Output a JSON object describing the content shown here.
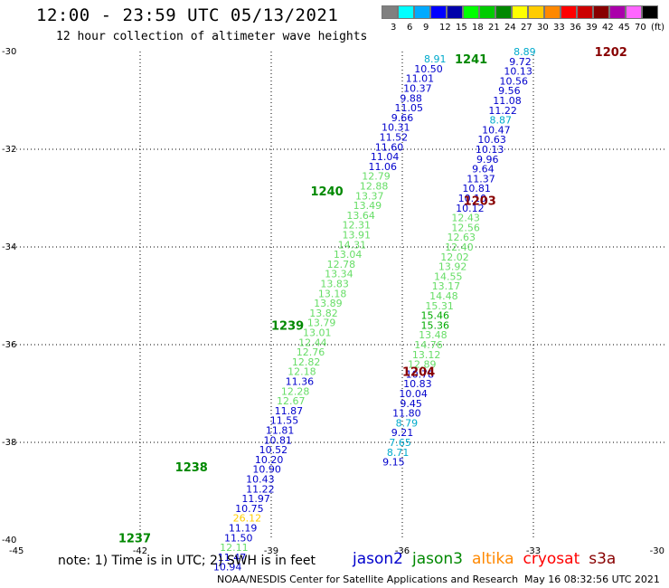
{
  "title": "12:00 - 23:59 UTC 05/13/2021",
  "subtitle": "12 hour collection of altimeter wave heights",
  "colorbar": {
    "labels": [
      "3",
      "6",
      "9",
      "12",
      "15",
      "18",
      "21",
      "24",
      "27",
      "30",
      "33",
      "36",
      "39",
      "42",
      "45",
      "70",
      "(ft)"
    ],
    "colors": [
      "#808080",
      "#00ffff",
      "#00aaff",
      "#0000ff",
      "#0000aa",
      "#00ff00",
      "#00cc00",
      "#008800",
      "#ffff00",
      "#ffcc00",
      "#ff8800",
      "#ff0000",
      "#cc0000",
      "#880000",
      "#aa00aa",
      "#ff66ff",
      "#000000"
    ]
  },
  "note": "note: 1) Time is in UTC; 2) SWH is in feet",
  "legend": [
    {
      "name": "jason2",
      "color": "#0000cc"
    },
    {
      "name": "jason3",
      "color": "#008800"
    },
    {
      "name": "altika",
      "color": "#ff8800"
    },
    {
      "name": "cryosat",
      "color": "#ff0000"
    },
    {
      "name": "s3a",
      "color": "#880000"
    }
  ],
  "credit": "NOAA/NESDIS Center for Satellite Applications and Research",
  "timestamp": "May 16 08:32:56 UTC 2021",
  "chart_data": {
    "type": "scatter",
    "xlim": [
      -45,
      -30
    ],
    "ylim": [
      -40,
      -30
    ],
    "x_ticks": [
      -45,
      -42,
      -39,
      -36,
      -33,
      -30
    ],
    "y_ticks": [
      -30,
      -32,
      -34,
      -36,
      -38,
      -40
    ],
    "x_tick_labels": [
      "-45",
      "-42",
      "-39",
      "-36",
      "-33",
      "-30"
    ],
    "y_tick_labels": [
      "-30",
      "-32",
      "-34",
      "-36",
      "-38",
      "-40"
    ],
    "grid": true,
    "pass_labels": [
      {
        "text": "1202",
        "x": -31.6,
        "y": -30.0,
        "color": "#880000"
      },
      {
        "text": "1241",
        "x": -34.8,
        "y": -30.15,
        "color": "#008800"
      },
      {
        "text": "1240",
        "x": -38.1,
        "y": -32.85,
        "color": "#008800"
      },
      {
        "text": "1203",
        "x": -34.6,
        "y": -33.05,
        "color": "#880000"
      },
      {
        "text": "1239",
        "x": -39.0,
        "y": -35.6,
        "color": "#008800"
      },
      {
        "text": "1204",
        "x": -36.0,
        "y": -36.55,
        "color": "#880000"
      },
      {
        "text": "1238",
        "x": -41.2,
        "y": -38.5,
        "color": "#008800"
      },
      {
        "text": "1237",
        "x": -42.5,
        "y": -39.95,
        "color": "#008800"
      }
    ],
    "tracks": [
      {
        "label": "jason3 west track",
        "points": [
          {
            "x": -35.25,
            "y": -30.15,
            "v": "8.91",
            "c": "#00aacc"
          },
          {
            "x": -35.4,
            "y": -30.35,
            "v": "10.50",
            "c": "#0000cc"
          },
          {
            "x": -35.6,
            "y": -30.55,
            "v": "11.01",
            "c": "#0000cc"
          },
          {
            "x": -35.65,
            "y": -30.75,
            "v": "10.37",
            "c": "#0000cc"
          },
          {
            "x": -35.8,
            "y": -30.95,
            "v": "9.88",
            "c": "#0000cc"
          },
          {
            "x": -35.85,
            "y": -31.15,
            "v": "11.05",
            "c": "#0000cc"
          },
          {
            "x": -36.0,
            "y": -31.35,
            "v": "9.66",
            "c": "#0000cc"
          },
          {
            "x": -36.15,
            "y": -31.55,
            "v": "10.31",
            "c": "#0000cc"
          },
          {
            "x": -36.2,
            "y": -31.75,
            "v": "11.52",
            "c": "#0000cc"
          },
          {
            "x": -36.3,
            "y": -31.95,
            "v": "11.60",
            "c": "#0000cc"
          },
          {
            "x": -36.4,
            "y": -32.15,
            "v": "11.04",
            "c": "#0000cc"
          },
          {
            "x": -36.45,
            "y": -32.35,
            "v": "11.06",
            "c": "#0000cc"
          },
          {
            "x": -36.6,
            "y": -32.55,
            "v": "12.79",
            "c": "#66dd66"
          },
          {
            "x": -36.65,
            "y": -32.75,
            "v": "12.88",
            "c": "#66dd66"
          },
          {
            "x": -36.75,
            "y": -32.95,
            "v": "13.37",
            "c": "#66dd66"
          },
          {
            "x": -36.8,
            "y": -33.15,
            "v": "13.49",
            "c": "#66dd66"
          },
          {
            "x": -36.95,
            "y": -33.35,
            "v": "13.64",
            "c": "#66dd66"
          },
          {
            "x": -37.05,
            "y": -33.55,
            "v": "12.31",
            "c": "#66dd66"
          },
          {
            "x": -37.05,
            "y": -33.75,
            "v": "13.91",
            "c": "#66dd66"
          },
          {
            "x": -37.15,
            "y": -33.95,
            "v": "14.31",
            "c": "#66dd66"
          },
          {
            "x": -37.25,
            "y": -34.15,
            "v": "13.04",
            "c": "#66dd66"
          },
          {
            "x": -37.4,
            "y": -34.35,
            "v": "12.78",
            "c": "#66dd66"
          },
          {
            "x": -37.45,
            "y": -34.55,
            "v": "13.34",
            "c": "#66dd66"
          },
          {
            "x": -37.55,
            "y": -34.75,
            "v": "13.83",
            "c": "#66dd66"
          },
          {
            "x": -37.6,
            "y": -34.95,
            "v": "13.18",
            "c": "#66dd66"
          },
          {
            "x": -37.7,
            "y": -35.15,
            "v": "13.89",
            "c": "#66dd66"
          },
          {
            "x": -37.8,
            "y": -35.35,
            "v": "13.82",
            "c": "#66dd66"
          },
          {
            "x": -37.85,
            "y": -35.55,
            "v": "13.79",
            "c": "#66dd66"
          },
          {
            "x": -37.95,
            "y": -35.75,
            "v": "13.01",
            "c": "#66dd66"
          },
          {
            "x": -38.05,
            "y": -35.95,
            "v": "12.44",
            "c": "#66dd66"
          },
          {
            "x": -38.1,
            "y": -36.15,
            "v": "12.76",
            "c": "#66dd66"
          },
          {
            "x": -38.2,
            "y": -36.35,
            "v": "12.82",
            "c": "#66dd66"
          },
          {
            "x": -38.3,
            "y": -36.55,
            "v": "12.18",
            "c": "#66dd66"
          },
          {
            "x": -38.35,
            "y": -36.75,
            "v": "11.36",
            "c": "#0000cc"
          },
          {
            "x": -38.45,
            "y": -36.95,
            "v": "12.28",
            "c": "#66dd66"
          },
          {
            "x": -38.55,
            "y": -37.15,
            "v": "12.67",
            "c": "#66dd66"
          },
          {
            "x": -38.6,
            "y": -37.35,
            "v": "11.87",
            "c": "#0000cc"
          },
          {
            "x": -38.7,
            "y": -37.55,
            "v": "11.55",
            "c": "#0000cc"
          },
          {
            "x": -38.8,
            "y": -37.75,
            "v": "11.81",
            "c": "#0000cc"
          },
          {
            "x": -38.85,
            "y": -37.95,
            "v": "10.81",
            "c": "#0000cc"
          },
          {
            "x": -38.95,
            "y": -38.15,
            "v": "10.52",
            "c": "#0000cc"
          },
          {
            "x": -39.05,
            "y": -38.35,
            "v": "10.20",
            "c": "#0000cc"
          },
          {
            "x": -39.1,
            "y": -38.55,
            "v": "10.90",
            "c": "#0000cc"
          },
          {
            "x": -39.25,
            "y": -38.75,
            "v": "10.43",
            "c": "#0000cc"
          },
          {
            "x": -39.25,
            "y": -38.95,
            "v": "11.22",
            "c": "#0000cc"
          },
          {
            "x": -39.35,
            "y": -39.15,
            "v": "11.97",
            "c": "#0000cc"
          },
          {
            "x": -39.5,
            "y": -39.35,
            "v": "10.75",
            "c": "#0000cc"
          },
          {
            "x": -39.55,
            "y": -39.55,
            "v": "26.12",
            "c": "#ffcc00"
          },
          {
            "x": -39.65,
            "y": -39.75,
            "v": "11.19",
            "c": "#0000cc"
          },
          {
            "x": -39.75,
            "y": -39.95,
            "v": "11.50",
            "c": "#0000cc"
          },
          {
            "x": -39.85,
            "y": -40.15,
            "v": "12.11",
            "c": "#66dd66"
          },
          {
            "x": -39.9,
            "y": -40.35,
            "v": "11.47",
            "c": "#0000cc"
          },
          {
            "x": -40.0,
            "y": -40.55,
            "v": "10.94",
            "c": "#0000cc"
          }
        ]
      },
      {
        "label": "east track",
        "points": [
          {
            "x": -33.2,
            "y": -30.0,
            "v": "8.89",
            "c": "#00aacc"
          },
          {
            "x": -33.3,
            "y": -30.2,
            "v": "9.72",
            "c": "#0000cc"
          },
          {
            "x": -33.35,
            "y": -30.4,
            "v": "10.13",
            "c": "#0000cc"
          },
          {
            "x": -33.45,
            "y": -30.6,
            "v": "10.56",
            "c": "#0000cc"
          },
          {
            "x": -33.55,
            "y": -30.8,
            "v": "9.56",
            "c": "#0000cc"
          },
          {
            "x": -33.6,
            "y": -31.0,
            "v": "11.08",
            "c": "#0000cc"
          },
          {
            "x": -33.7,
            "y": -31.2,
            "v": "11.22",
            "c": "#0000cc"
          },
          {
            "x": -33.75,
            "y": -31.4,
            "v": "8.87",
            "c": "#00aacc"
          },
          {
            "x": -33.85,
            "y": -31.6,
            "v": "10.47",
            "c": "#0000cc"
          },
          {
            "x": -33.95,
            "y": -31.8,
            "v": "10.63",
            "c": "#0000cc"
          },
          {
            "x": -34.0,
            "y": -32.0,
            "v": "10.13",
            "c": "#0000cc"
          },
          {
            "x": -34.05,
            "y": -32.2,
            "v": "9.96",
            "c": "#0000cc"
          },
          {
            "x": -34.15,
            "y": -32.4,
            "v": "9.64",
            "c": "#0000cc"
          },
          {
            "x": -34.2,
            "y": -32.6,
            "v": "11.37",
            "c": "#0000cc"
          },
          {
            "x": -34.3,
            "y": -32.8,
            "v": "10.81",
            "c": "#0000cc"
          },
          {
            "x": -34.4,
            "y": -33.0,
            "v": "10.10",
            "c": "#0000cc"
          },
          {
            "x": -34.45,
            "y": -33.2,
            "v": "10.12",
            "c": "#0000cc"
          },
          {
            "x": -34.55,
            "y": -33.4,
            "v": "12.43",
            "c": "#66dd66"
          },
          {
            "x": -34.55,
            "y": -33.6,
            "v": "12.56",
            "c": "#66dd66"
          },
          {
            "x": -34.65,
            "y": -33.8,
            "v": "12.63",
            "c": "#66dd66"
          },
          {
            "x": -34.7,
            "y": -34.0,
            "v": "12.40",
            "c": "#66dd66"
          },
          {
            "x": -34.8,
            "y": -34.2,
            "v": "12.02",
            "c": "#66dd66"
          },
          {
            "x": -34.85,
            "y": -34.4,
            "v": "13.92",
            "c": "#66dd66"
          },
          {
            "x": -34.95,
            "y": -34.6,
            "v": "14.55",
            "c": "#66dd66"
          },
          {
            "x": -35.0,
            "y": -34.8,
            "v": "13.17",
            "c": "#66dd66"
          },
          {
            "x": -35.05,
            "y": -35.0,
            "v": "14.48",
            "c": "#66dd66"
          },
          {
            "x": -35.15,
            "y": -35.2,
            "v": "15.31",
            "c": "#66dd66"
          },
          {
            "x": -35.25,
            "y": -35.4,
            "v": "15.46",
            "c": "#00aa00"
          },
          {
            "x": -35.25,
            "y": -35.6,
            "v": "15.36",
            "c": "#00aa00"
          },
          {
            "x": -35.3,
            "y": -35.8,
            "v": "13.48",
            "c": "#66dd66"
          },
          {
            "x": -35.4,
            "y": -36.0,
            "v": "14.76",
            "c": "#66dd66"
          },
          {
            "x": -35.45,
            "y": -36.2,
            "v": "13.12",
            "c": "#66dd66"
          },
          {
            "x": -35.55,
            "y": -36.4,
            "v": "12.89",
            "c": "#66dd66"
          },
          {
            "x": -35.6,
            "y": -36.6,
            "v": "10.78",
            "c": "#0000cc"
          },
          {
            "x": -35.65,
            "y": -36.8,
            "v": "10.83",
            "c": "#0000cc"
          },
          {
            "x": -35.75,
            "y": -37.0,
            "v": "10.04",
            "c": "#0000cc"
          },
          {
            "x": -35.8,
            "y": -37.2,
            "v": "9.45",
            "c": "#0000cc"
          },
          {
            "x": -35.9,
            "y": -37.4,
            "v": "11.80",
            "c": "#0000cc"
          },
          {
            "x": -35.9,
            "y": -37.6,
            "v": "8.79",
            "c": "#00aacc"
          },
          {
            "x": -36.0,
            "y": -37.8,
            "v": "9.21",
            "c": "#0000cc"
          },
          {
            "x": -36.05,
            "y": -38.0,
            "v": "7.65",
            "c": "#00aacc"
          },
          {
            "x": -36.1,
            "y": -38.2,
            "v": "8.71",
            "c": "#00aacc"
          },
          {
            "x": -36.2,
            "y": -38.4,
            "v": "9.15",
            "c": "#0000cc"
          }
        ]
      }
    ]
  }
}
